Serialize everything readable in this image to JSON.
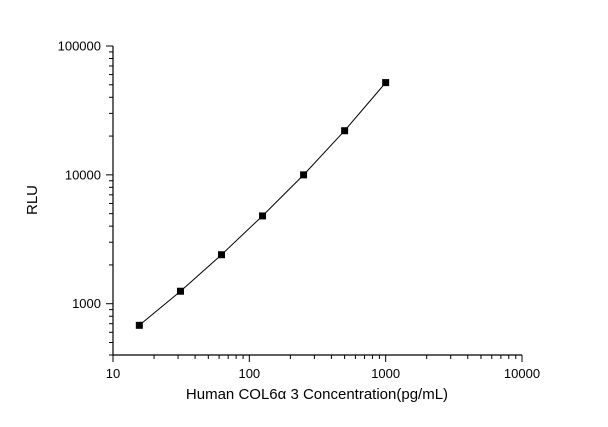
{
  "chart_data": {
    "type": "scatter",
    "title": "",
    "xlabel": "Human COL6α 3 Concentration(pg/mL)",
    "ylabel": "RLU",
    "xscale": "log",
    "yscale": "log",
    "xlim": [
      10,
      10000
    ],
    "ylim": [
      400,
      100000
    ],
    "xticks": [
      10,
      100,
      1000,
      10000
    ],
    "yticks": [
      1000,
      10000,
      100000
    ],
    "x": [
      15.6,
      31.25,
      62.5,
      125,
      250,
      500,
      1000
    ],
    "y": [
      680,
      1250,
      2400,
      4800,
      10000,
      22000,
      52000
    ],
    "marker": "square",
    "marker_size": 7,
    "line_color": "#000000",
    "marker_color": "#000000",
    "axis_color": "#000000",
    "background_color": "#ffffff",
    "legend": null,
    "grid": false
  }
}
